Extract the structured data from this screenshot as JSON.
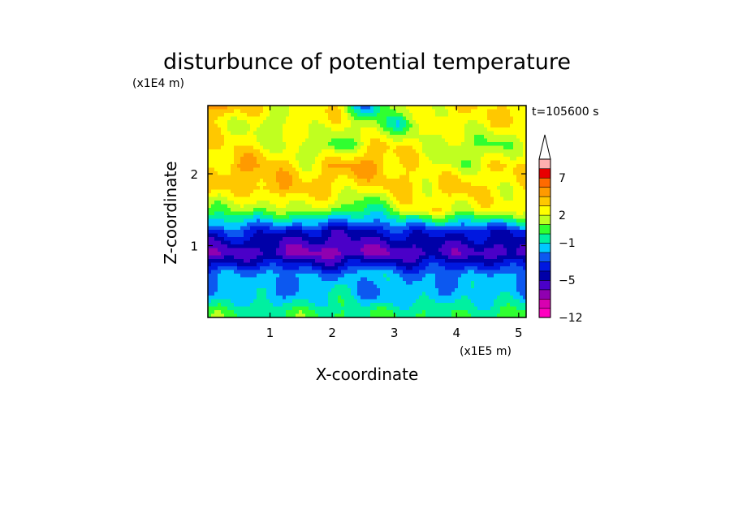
{
  "chart_data": {
    "type": "heatmap",
    "title": "disturbunce of potential temperature",
    "y_scale_label": "(x1E4 m)",
    "x_scale_label": "(x1E5 m)",
    "time_label": "t=105600 s",
    "xlabel": "X-coordinate",
    "ylabel": "Z-coordinate",
    "x_range": [
      0,
      5.12
    ],
    "y_range": [
      0,
      2.95
    ],
    "x_ticks": [
      "1",
      "2",
      "3",
      "4",
      "5"
    ],
    "y_ticks": [
      "1",
      "2"
    ],
    "colorbar": {
      "tick_labels": [
        "7",
        "2",
        "−1",
        "−5",
        "−12"
      ],
      "levels": [
        -12,
        -10,
        -8,
        -6,
        -5,
        -4,
        -3,
        -2,
        -1,
        0,
        1,
        2,
        3,
        4,
        5,
        7,
        9
      ],
      "colors": [
        "#ff00c0",
        "#d800b0",
        "#9000b0",
        "#4a00c8",
        "#0000a8",
        "#0018e0",
        "#0c58f0",
        "#00c8ff",
        "#00f0a0",
        "#30ff30",
        "#c0ff20",
        "#ffff00",
        "#ffc800",
        "#ff9a00",
        "#ff6a00",
        "#e80000",
        "#ffb0b0"
      ],
      "extend": "max"
    },
    "field_rows_z": [
      0.05,
      0.3,
      0.6,
      0.9,
      1.2,
      1.5,
      1.8,
      2.1,
      2.4,
      2.7,
      2.95
    ],
    "field_description_values": [
      [
        0.5,
        0.2,
        -0.3,
        0.4,
        0.1,
        -0.2,
        0.3,
        0.0,
        -0.4,
        0.2,
        0.5
      ],
      [
        -2.0,
        -0.8,
        -2.2,
        -1.5,
        -0.5,
        -2.4,
        -1.2,
        -2.0,
        -0.9,
        -1.6,
        -1.8
      ],
      [
        -2.4,
        -2.2,
        -1.3,
        -2.5,
        -2.3,
        -1.0,
        -2.4,
        -1.8,
        -2.6,
        -1.2,
        -2.3
      ],
      [
        -6.0,
        -5.5,
        -5.8,
        -6.2,
        -6.5,
        -6.3,
        -5.9,
        -5.6,
        -5.4,
        -5.7,
        -5.8
      ],
      [
        -3.4,
        -3.0,
        -3.6,
        -4.2,
        -4.5,
        -4.0,
        -3.5,
        -3.2,
        -3.8,
        -3.6,
        -3.4
      ],
      [
        0.8,
        1.5,
        0.6,
        2.4,
        0.9,
        -0.8,
        1.8,
        2.6,
        2.0,
        2.5,
        2.2
      ],
      [
        3.6,
        2.8,
        4.2,
        3.4,
        3.0,
        2.4,
        3.5,
        2.6,
        3.8,
        2.4,
        2.8
      ],
      [
        2.2,
        4.4,
        3.6,
        2.4,
        3.9,
        4.6,
        3.0,
        2.2,
        1.6,
        2.8,
        3.2
      ],
      [
        3.2,
        2.6,
        2.2,
        1.6,
        0.2,
        2.6,
        3.0,
        2.0,
        1.2,
        0.6,
        2.4
      ],
      [
        2.6,
        2.2,
        1.0,
        3.0,
        2.4,
        1.6,
        -0.6,
        2.6,
        2.2,
        3.0,
        2.6
      ],
      [
        4.8,
        3.4,
        2.6,
        2.2,
        3.0,
        -2.4,
        2.0,
        2.4,
        3.2,
        2.6,
        3.8
      ]
    ]
  }
}
